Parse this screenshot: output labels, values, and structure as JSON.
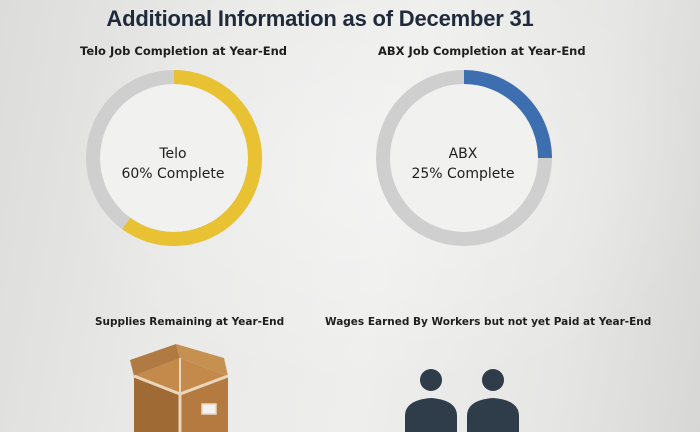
{
  "title": "Additional Information as of December 31",
  "telo": {
    "chart_title": "Telo Job Completion at Year-End",
    "name": "Telo",
    "status": "60% Complete",
    "percent": 60,
    "color": "#e8c233"
  },
  "abx": {
    "chart_title": "ABX Job Completion at Year-End",
    "name": "ABX",
    "status": "25% Complete",
    "percent": 25,
    "color": "#3d6fb0"
  },
  "ring_color": "#cfcfcf",
  "supplies_label": "Supplies Remaining at Year-End",
  "wages_label": "Wages Earned By Workers but not yet Paid at Year-End",
  "icons": {
    "supplies": "box-icon",
    "workers": "workers-icon"
  }
}
